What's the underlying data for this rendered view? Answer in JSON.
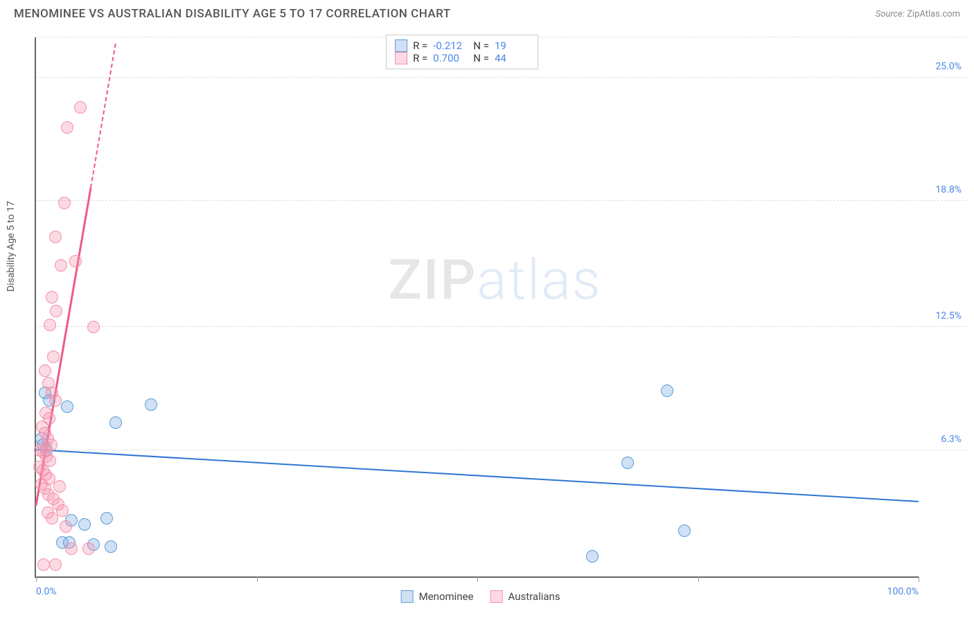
{
  "header": {
    "title": "MENOMINEE VS AUSTRALIAN DISABILITY AGE 5 TO 17 CORRELATION CHART",
    "source_label": "Source:",
    "source_value": "ZipAtlas.com"
  },
  "ylabel": "Disability Age 5 to 17",
  "watermark": {
    "part1": "ZIP",
    "part2": "atlas"
  },
  "chart": {
    "type": "scatter",
    "xlim": [
      0,
      100
    ],
    "ylim": [
      0,
      27
    ],
    "x_ticks": [
      0,
      25,
      50,
      75,
      100
    ],
    "x_tick_labels": {
      "0": "0.0%",
      "100": "100.0%"
    },
    "y_gridlines": [
      6.3,
      12.5,
      18.8,
      25.0
    ],
    "y_grid_labels": [
      "6.3%",
      "12.5%",
      "18.8%",
      "25.0%"
    ],
    "background_color": "#ffffff",
    "grid_color": "#dddddd",
    "axis_color": "#666666",
    "tick_label_color": "#4a86e8",
    "point_radius": 9,
    "series": [
      {
        "name": "Menominee",
        "fill": "rgba(120,170,230,0.35)",
        "stroke": "#5b9bd5",
        "r_value": "-0.212",
        "n_value": "19",
        "trend": {
          "x1": 0,
          "y1": 6.4,
          "x2": 100,
          "y2": 3.8,
          "color": "#2e75d6",
          "width": 2
        },
        "points": [
          [
            1.0,
            9.2
          ],
          [
            1.5,
            8.8
          ],
          [
            3.5,
            8.5
          ],
          [
            0.6,
            6.9
          ],
          [
            0.8,
            6.6
          ],
          [
            1.2,
            6.3
          ],
          [
            4.0,
            2.8
          ],
          [
            5.5,
            2.6
          ],
          [
            8.0,
            2.9
          ],
          [
            3.0,
            1.7
          ],
          [
            3.8,
            1.7
          ],
          [
            6.5,
            1.6
          ],
          [
            8.5,
            1.5
          ],
          [
            13.0,
            8.6
          ],
          [
            9.0,
            7.7
          ],
          [
            71.5,
            9.3
          ],
          [
            67.0,
            5.7
          ],
          [
            63.0,
            1.0
          ],
          [
            73.5,
            2.3
          ]
        ]
      },
      {
        "name": "Australians",
        "fill": "rgba(245,150,175,0.35)",
        "stroke": "#f28fa9",
        "r_value": "0.700",
        "n_value": "44",
        "trend_solid": {
          "x1": 0,
          "y1": 3.6,
          "x2": 6.2,
          "y2": 19.5,
          "color": "#ec5a86",
          "width": 3
        },
        "trend_dashed": {
          "x1": 6.2,
          "y1": 19.5,
          "x2": 9.0,
          "y2": 26.7,
          "color": "#ec5a86",
          "width": 2
        },
        "points": [
          [
            5.0,
            23.5
          ],
          [
            3.5,
            22.5
          ],
          [
            3.2,
            18.7
          ],
          [
            2.2,
            17.0
          ],
          [
            2.8,
            15.6
          ],
          [
            4.5,
            15.8
          ],
          [
            1.8,
            14.0
          ],
          [
            2.3,
            13.3
          ],
          [
            1.6,
            12.6
          ],
          [
            6.5,
            12.5
          ],
          [
            2.0,
            11.0
          ],
          [
            1.0,
            10.3
          ],
          [
            1.4,
            9.7
          ],
          [
            1.8,
            9.2
          ],
          [
            2.2,
            8.8
          ],
          [
            1.1,
            8.2
          ],
          [
            1.5,
            7.9
          ],
          [
            0.7,
            7.5
          ],
          [
            1.0,
            7.2
          ],
          [
            1.3,
            6.9
          ],
          [
            1.7,
            6.6
          ],
          [
            0.5,
            6.3
          ],
          [
            0.9,
            6.2
          ],
          [
            1.2,
            6.0
          ],
          [
            1.6,
            5.8
          ],
          [
            0.4,
            5.5
          ],
          [
            0.8,
            5.3
          ],
          [
            1.1,
            5.1
          ],
          [
            1.5,
            4.9
          ],
          [
            0.6,
            4.6
          ],
          [
            1.0,
            4.4
          ],
          [
            1.4,
            4.1
          ],
          [
            2.0,
            3.9
          ],
          [
            2.5,
            3.6
          ],
          [
            1.3,
            3.2
          ],
          [
            1.8,
            2.9
          ],
          [
            3.0,
            3.3
          ],
          [
            0.9,
            0.6
          ],
          [
            2.2,
            0.6
          ],
          [
            3.4,
            2.5
          ],
          [
            4.0,
            1.4
          ],
          [
            6.0,
            1.4
          ],
          [
            2.7,
            4.5
          ],
          [
            1.1,
            6.5
          ]
        ]
      }
    ]
  },
  "legend_top": {
    "r_label": "R =",
    "n_label": "N ="
  },
  "legend_bottom": {
    "items": [
      "Menominee",
      "Australians"
    ]
  }
}
